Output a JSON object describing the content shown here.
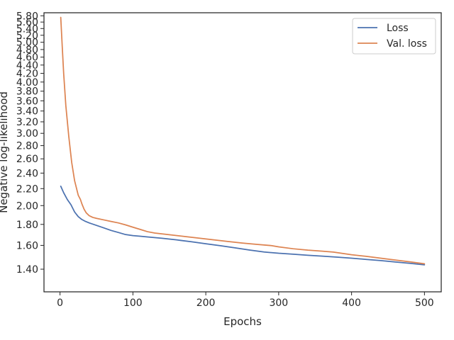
{
  "chart_data": {
    "type": "line",
    "xlabel": "Epochs",
    "ylabel": "Negative log-likelihood",
    "xlim": [
      -22,
      523
    ],
    "ylim": [
      1.233,
      5.9
    ],
    "y_scale": "log",
    "grid": false,
    "legend_position": "top-right",
    "x_ticks": [
      0,
      100,
      200,
      300,
      400,
      500
    ],
    "x_tick_labels": [
      "0",
      "100",
      "200",
      "300",
      "400",
      "500"
    ],
    "y_ticks": [
      1.4,
      1.6,
      1.8,
      2.0,
      2.2,
      2.4,
      2.6,
      2.8,
      3.0,
      3.2,
      3.4,
      3.6,
      3.8,
      4.0,
      4.2,
      4.4,
      4.6,
      4.8,
      5.0,
      5.2,
      5.4,
      5.6,
      5.8
    ],
    "y_tick_labels": [
      "1.40",
      "1.60",
      "1.80",
      "2.00",
      "2.20",
      "2.40",
      "2.60",
      "2.80",
      "3.00",
      "3.20",
      "3.40",
      "3.60",
      "3.80",
      "4.00",
      "4.20",
      "4.40",
      "4.60",
      "4.80",
      "5.00",
      "5.20",
      "5.40",
      "5.60",
      "5.80"
    ],
    "series": [
      {
        "name": "Loss",
        "color": "#4c72b0",
        "x": [
          1,
          5,
          10,
          15,
          20,
          25,
          30,
          35,
          40,
          50,
          60,
          70,
          80,
          90,
          100,
          110,
          120,
          140,
          160,
          180,
          200,
          220,
          240,
          260,
          280,
          300,
          320,
          340,
          360,
          380,
          400,
          420,
          440,
          460,
          480,
          500
        ],
        "y": [
          2.23,
          2.15,
          2.07,
          2.01,
          1.93,
          1.88,
          1.85,
          1.83,
          1.815,
          1.79,
          1.765,
          1.74,
          1.72,
          1.7,
          1.69,
          1.684,
          1.678,
          1.665,
          1.65,
          1.633,
          1.615,
          1.597,
          1.578,
          1.559,
          1.542,
          1.531,
          1.523,
          1.514,
          1.506,
          1.498,
          1.489,
          1.479,
          1.469,
          1.458,
          1.447,
          1.435
        ]
      },
      {
        "name": "Val. loss",
        "color": "#dd8452",
        "x": [
          1,
          3,
          5,
          8,
          12,
          16,
          20,
          25,
          28,
          30,
          33,
          36,
          40,
          45,
          50,
          60,
          70,
          80,
          90,
          100,
          110,
          120,
          130,
          150,
          170,
          190,
          210,
          230,
          250,
          270,
          290,
          300,
          320,
          340,
          360,
          375,
          400,
          420,
          440,
          460,
          480,
          500
        ],
        "y": [
          5.75,
          4.9,
          4.2,
          3.5,
          2.95,
          2.55,
          2.3,
          2.12,
          2.07,
          2.02,
          1.96,
          1.92,
          1.89,
          1.872,
          1.862,
          1.846,
          1.83,
          1.815,
          1.795,
          1.772,
          1.75,
          1.728,
          1.715,
          1.699,
          1.683,
          1.667,
          1.651,
          1.636,
          1.621,
          1.609,
          1.598,
          1.587,
          1.57,
          1.558,
          1.549,
          1.541,
          1.518,
          1.505,
          1.489,
          1.474,
          1.459,
          1.443
        ]
      }
    ]
  }
}
